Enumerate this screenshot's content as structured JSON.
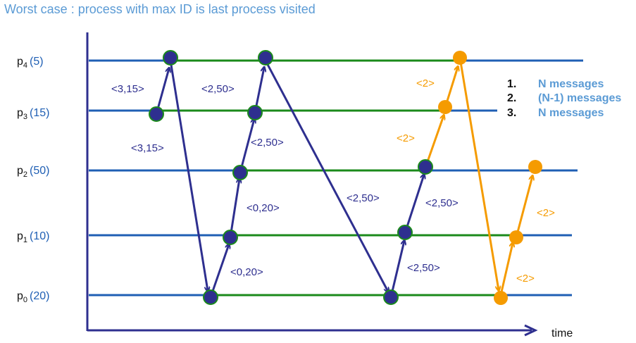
{
  "title": "Worst case : process with max ID is last process visited",
  "processes": [
    {
      "name": "p",
      "sub": "4",
      "id": "(5)"
    },
    {
      "name": "p",
      "sub": "3",
      "id": "(15)"
    },
    {
      "name": "p",
      "sub": "2",
      "id": "(50)"
    },
    {
      "name": "p",
      "sub": "1",
      "id": "(10)"
    },
    {
      "name": "p",
      "sub": "0",
      "id": "(20)"
    }
  ],
  "messages": {
    "m1": "<3,15>",
    "m2": "<3,15>",
    "m3": "<2,50>",
    "m4": "<2,50>",
    "m5": "<0,20>",
    "m6": "<0,20>",
    "m7": "<2,50>",
    "m8": "<2,50>",
    "m9": "<2,50>",
    "o1": "<2>",
    "o2": "<2>",
    "o3": "<2>",
    "o4": "<2>"
  },
  "legend": [
    {
      "num": "1.",
      "text": "N messages"
    },
    {
      "num": "2.",
      "text": "(N-1) messages"
    },
    {
      "num": "3.",
      "text": "N messages"
    }
  ],
  "axis_label": "time",
  "colors": {
    "title": "#5b9bd5",
    "timeline": "#1f5fb4",
    "active": "#1b8a1b",
    "node": "#2e2f8f",
    "orange": "#f59b00",
    "axis": "#2e2f8f"
  }
}
